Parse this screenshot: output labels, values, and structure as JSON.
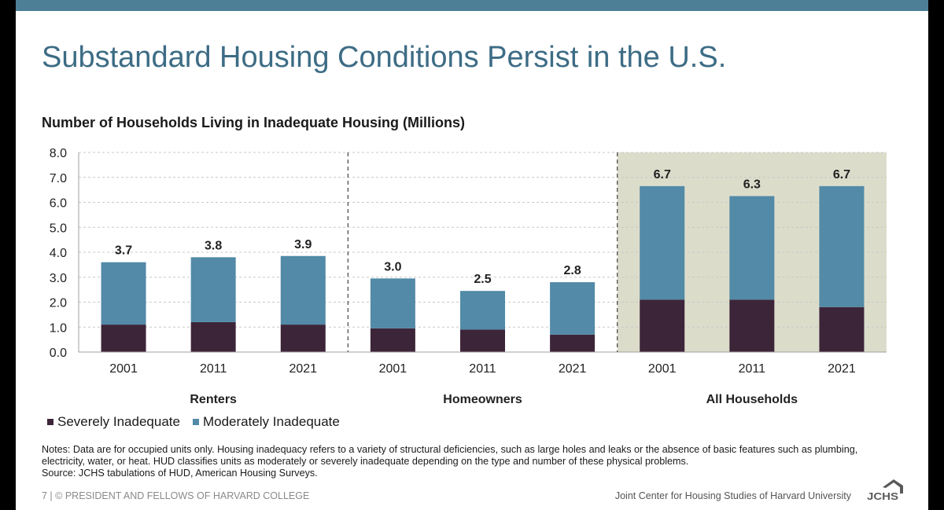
{
  "slide": {
    "title": "Substandard Housing Conditions Persist in the U.S.",
    "notes": "Notes: Data are for occupied units only. Housing inadequacy refers to a variety of structural deficiencies, such as large holes and leaks or the absence of basic features such as plumbing, electricity, water, or heat. HUD classifies units as moderately or severely inadequate depending on the type and number of these physical problems.",
    "source": "Source: JCHS tabulations of HUD, American Housing Surveys.",
    "footer_left": "7 | © PRESIDENT AND FELLOWS OF HARVARD COLLEGE",
    "footer_right": "Joint Center for Housing Studies of Harvard University",
    "logo_text": "JCHS"
  },
  "chart_data": {
    "type": "bar",
    "stacked": true,
    "title": "Number of Households Living in Inadequate Housing (Millions)",
    "groups": [
      "Renters",
      "Homeowners",
      "All Households"
    ],
    "categories": [
      "2001",
      "2011",
      "2021",
      "2001",
      "2011",
      "2021",
      "2001",
      "2011",
      "2021"
    ],
    "series": [
      {
        "name": "Severely Inadequate",
        "color": "#3d2539",
        "values": [
          1.1,
          1.2,
          1.1,
          0.95,
          0.9,
          0.7,
          2.1,
          2.1,
          1.8
        ]
      },
      {
        "name": "Moderately Inadequate",
        "color": "#528aa7",
        "values": [
          2.5,
          2.6,
          2.75,
          2.0,
          1.55,
          2.1,
          4.55,
          4.15,
          4.85
        ]
      }
    ],
    "total_labels": [
      "3.7",
      "3.8",
      "3.9",
      "3.0",
      "2.5",
      "2.8",
      "6.7",
      "6.3",
      "6.7"
    ],
    "ylim": [
      0,
      8
    ],
    "yticks": [
      "0.0",
      "1.0",
      "2.0",
      "3.0",
      "4.0",
      "5.0",
      "6.0",
      "7.0",
      "8.0"
    ],
    "grid": true,
    "highlight_group": "All Households",
    "highlight_color": "#dcdccb",
    "legend_position": "bottom-left"
  }
}
